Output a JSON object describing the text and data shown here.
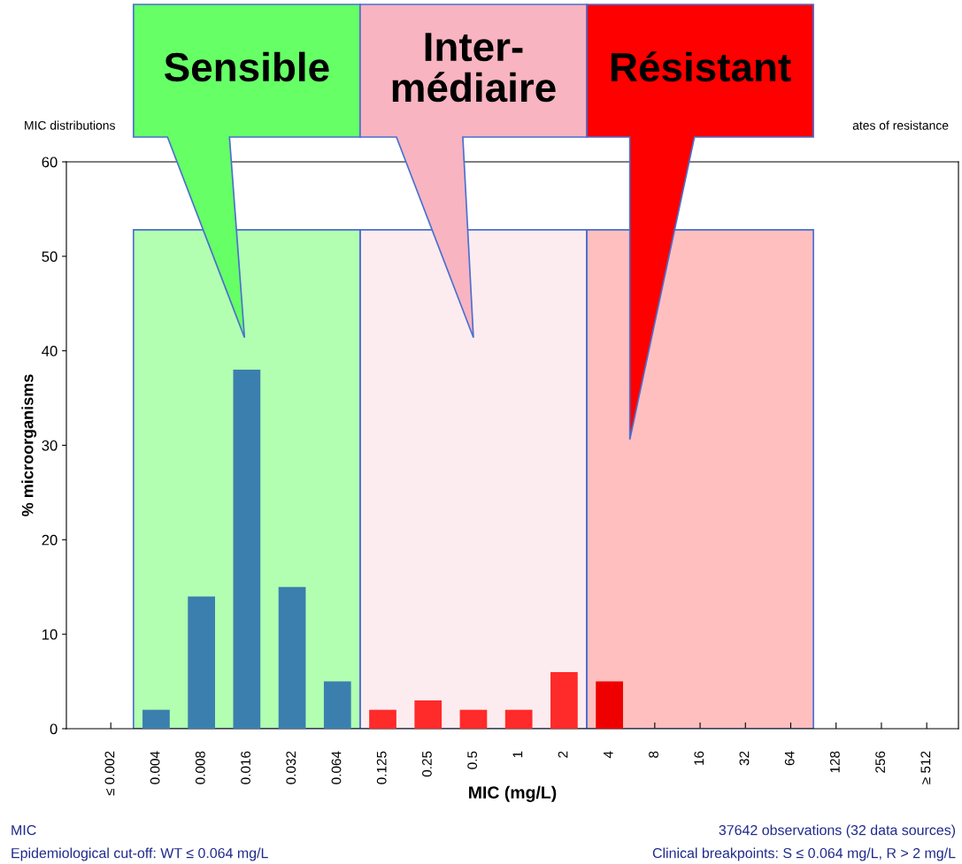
{
  "chart_data": {
    "type": "bar",
    "categories": [
      "≤ 0.002",
      "0.004",
      "0.008",
      "0.016",
      "0.032",
      "0.064",
      "0.125",
      "0.25",
      "0.5",
      "1",
      "2",
      "4",
      "8",
      "16",
      "32",
      "64",
      "128",
      "256",
      "≥ 512"
    ],
    "values": [
      0,
      2,
      14,
      38,
      15,
      5,
      2,
      3,
      2,
      2,
      6,
      5,
      0,
      0,
      0,
      0,
      0,
      0,
      0
    ],
    "colors": [
      "#3a7fae",
      "#3a7fae",
      "#3a7fae",
      "#3a7fae",
      "#3a7fae",
      "#3a7fae",
      "#ff2a2a",
      "#ff2a2a",
      "#ff2a2a",
      "#ff2a2a",
      "#ff2a2a",
      "#ee0000",
      "#ff2a2a",
      "#ff2a2a",
      "#ff2a2a",
      "#ff2a2a",
      "#ff2a2a",
      "#ff2a2a",
      "#ff2a2a"
    ],
    "xlabel": "MIC (mg/L)",
    "ylabel": "% microorganisms",
    "ylim": [
      0,
      60
    ],
    "yticks": [
      0,
      10,
      20,
      30,
      40,
      50,
      60
    ],
    "grid": false,
    "bands": [
      {
        "axis": "x",
        "from": "0.004",
        "to": "0.064",
        "color": "#66ff66"
      },
      {
        "axis": "x",
        "from": "0.125",
        "to": "2",
        "color": "#f8b4c0"
      },
      {
        "axis": "x",
        "from": "4",
        "to": "64",
        "color": "#ff0000"
      }
    ],
    "annotations": [
      "Sensible",
      "Inter-\nmédiaire",
      "Résistant",
      "MIC distributions",
      "ates of resistance",
      "MIC",
      "Epidemiological cut-off: WT ≤ 0.064 mg/L",
      "37642 observations (32 data sources)",
      "Clinical breakpoints: S ≤ 0.064 mg/L, R > 2 mg/L"
    ]
  }
}
